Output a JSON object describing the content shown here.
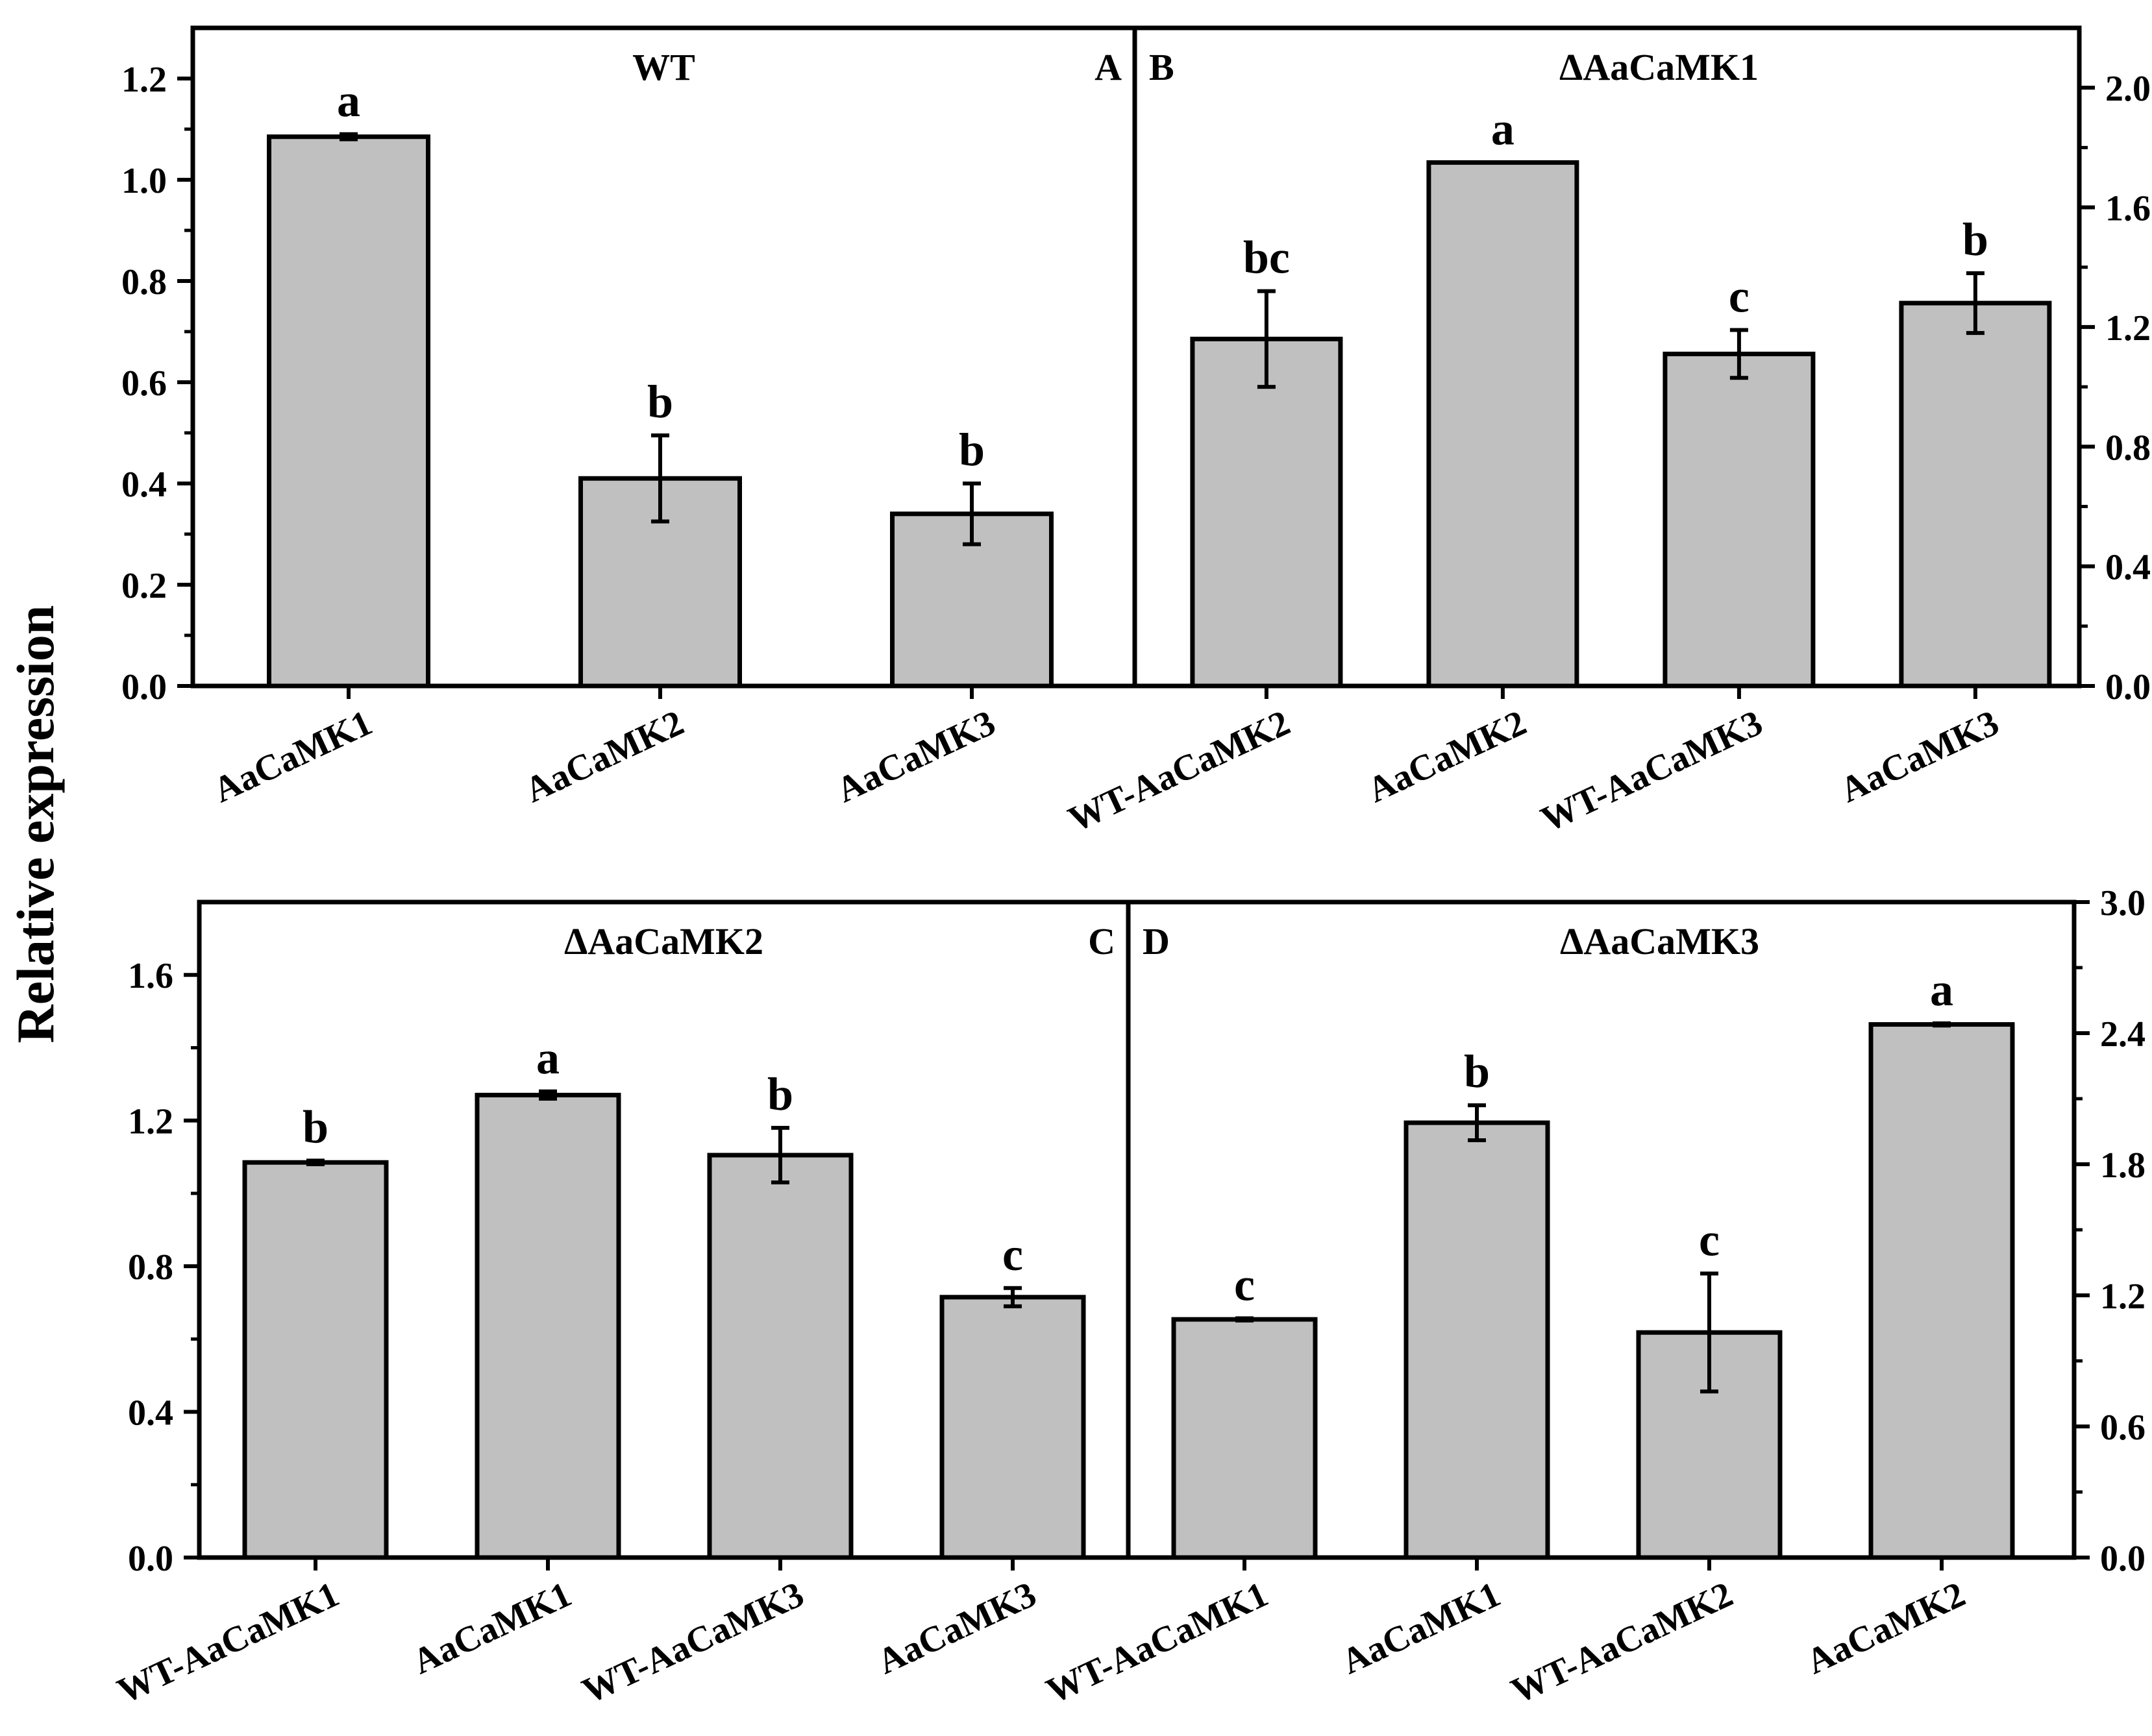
{
  "figure": {
    "ylabel": "Relative expression",
    "bar_color": "#c0c0c0",
    "stroke_color": "#000000"
  },
  "chart_data": [
    {
      "type": "bar",
      "panel": "A",
      "title": "WT",
      "ylabel": "Relative expression",
      "ylim": [
        0,
        1.3
      ],
      "yticks": [
        "0.0",
        "0.2",
        "0.4",
        "0.6",
        "0.8",
        "1.0",
        "1.2"
      ],
      "axis_side": "left",
      "categories": [
        "AaCaMK1",
        "AaCaMK2",
        "AaCaMK3"
      ],
      "values": [
        1.085,
        0.41,
        0.34
      ],
      "errors": [
        0.005,
        0.085,
        0.06
      ],
      "significance": [
        "a",
        "b",
        "b"
      ]
    },
    {
      "type": "bar",
      "panel": "B",
      "title": "ΔAaCaMK1",
      "ylabel": "Relative expression",
      "ylim": [
        0,
        2.2
      ],
      "yticks": [
        "0.0",
        "0.4",
        "0.8",
        "1.2",
        "1.6",
        "2.0"
      ],
      "axis_side": "right",
      "categories": [
        "WT-AaCaMK2",
        "AaCaMK2",
        "WT-AaCaMK3",
        "AaCaMK3"
      ],
      "values": [
        1.16,
        1.75,
        1.11,
        1.28
      ],
      "errors": [
        0.16,
        0.0,
        0.08,
        0.1
      ],
      "significance": [
        "bc",
        "a",
        "c",
        "b"
      ]
    },
    {
      "type": "bar",
      "panel": "C",
      "title": "ΔAaCaMK2",
      "ylabel": "Relative expression",
      "ylim": [
        0,
        1.8
      ],
      "yticks": [
        "0.0",
        "0.4",
        "0.8",
        "1.2",
        "1.6"
      ],
      "axis_side": "left",
      "categories": [
        "WT-AaCaMK1",
        "AaCaMK1",
        "WT-AaCaMK3",
        "AaCaMK3"
      ],
      "values": [
        1.085,
        1.27,
        1.105,
        0.715
      ],
      "errors": [
        0.005,
        0.01,
        0.075,
        0.025
      ],
      "significance": [
        "b",
        "a",
        "b",
        "c"
      ]
    },
    {
      "type": "bar",
      "panel": "D",
      "title": "ΔAaCaMK3",
      "ylabel": "Relative expression",
      "ylim": [
        0,
        3.0
      ],
      "yticks": [
        "0.0",
        "0.6",
        "1.2",
        "1.8",
        "2.4",
        "3.0"
      ],
      "axis_side": "right",
      "categories": [
        "WT-AaCaMK1",
        "AaCaMK1",
        "WT-AaCaMK2",
        "AaCaMK2"
      ],
      "values": [
        1.09,
        1.99,
        1.03,
        2.44
      ],
      "errors": [
        0.005,
        0.08,
        0.27,
        0.005
      ],
      "significance": [
        "c",
        "b",
        "c",
        "a"
      ]
    }
  ]
}
